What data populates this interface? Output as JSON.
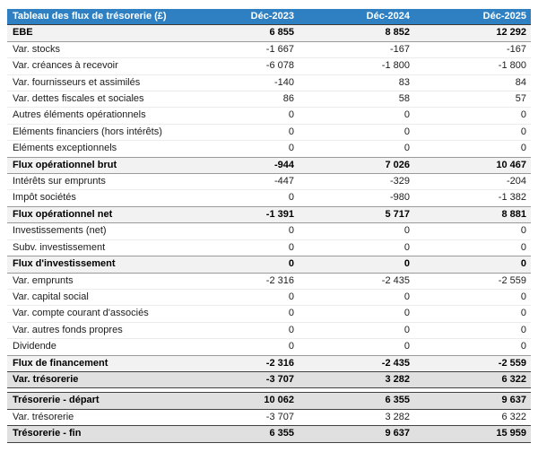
{
  "table": {
    "title": "Tableau des flux de trésorerie (£)",
    "columns": [
      "Déc-2023",
      "Déc-2024",
      "Déc-2025"
    ],
    "rows": [
      {
        "label": "EBE",
        "values": [
          "6 855",
          "8 852",
          "12 292"
        ],
        "style": "subtotal"
      },
      {
        "label": "Var. stocks",
        "values": [
          "-1 667",
          "-167",
          "-167"
        ],
        "style": "normal"
      },
      {
        "label": "Var. créances à recevoir",
        "values": [
          "-6 078",
          "-1 800",
          "-1 800"
        ],
        "style": "normal"
      },
      {
        "label": "Var. fournisseurs et assimilés",
        "values": [
          "-140",
          "83",
          "84"
        ],
        "style": "normal"
      },
      {
        "label": "Var. dettes fiscales et sociales",
        "values": [
          "86",
          "58",
          "57"
        ],
        "style": "normal"
      },
      {
        "label": "Autres éléments opérationnels",
        "values": [
          "0",
          "0",
          "0"
        ],
        "style": "normal"
      },
      {
        "label": "Eléments financiers (hors intérêts)",
        "values": [
          "0",
          "0",
          "0"
        ],
        "style": "normal"
      },
      {
        "label": "Eléments exceptionnels",
        "values": [
          "0",
          "0",
          "0"
        ],
        "style": "normal"
      },
      {
        "label": "Flux opérationnel brut",
        "values": [
          "-944",
          "7 026",
          "10 467"
        ],
        "style": "subtotal"
      },
      {
        "label": "Intérêts sur emprunts",
        "values": [
          "-447",
          "-329",
          "-204"
        ],
        "style": "normal"
      },
      {
        "label": "Impôt sociétés",
        "values": [
          "0",
          "-980",
          "-1 382"
        ],
        "style": "normal"
      },
      {
        "label": "Flux opérationnel net",
        "values": [
          "-1 391",
          "5 717",
          "8 881"
        ],
        "style": "subtotal"
      },
      {
        "label": "Investissements (net)",
        "values": [
          "0",
          "0",
          "0"
        ],
        "style": "normal"
      },
      {
        "label": "Subv. investissement",
        "values": [
          "0",
          "0",
          "0"
        ],
        "style": "normal"
      },
      {
        "label": "Flux d'investissement",
        "values": [
          "0",
          "0",
          "0"
        ],
        "style": "subtotal"
      },
      {
        "label": "Var. emprunts",
        "values": [
          "-2 316",
          "-2 435",
          "-2 559"
        ],
        "style": "normal"
      },
      {
        "label": "Var. capital social",
        "values": [
          "0",
          "0",
          "0"
        ],
        "style": "normal"
      },
      {
        "label": "Var. compte courant d'associés",
        "values": [
          "0",
          "0",
          "0"
        ],
        "style": "normal"
      },
      {
        "label": "Var. autres fonds propres",
        "values": [
          "0",
          "0",
          "0"
        ],
        "style": "normal"
      },
      {
        "label": "Dividende",
        "values": [
          "0",
          "0",
          "0"
        ],
        "style": "normal"
      },
      {
        "label": "Flux de financement",
        "values": [
          "-2 316",
          "-2 435",
          "-2 559"
        ],
        "style": "subtotal"
      },
      {
        "label": "Var. trésorerie",
        "values": [
          "-3 707",
          "3 282",
          "6 322"
        ],
        "style": "total"
      },
      {
        "style": "spacer"
      },
      {
        "label": "Trésorerie - départ",
        "values": [
          "10 062",
          "6 355",
          "9 637"
        ],
        "style": "total"
      },
      {
        "label": "Var. trésorerie",
        "values": [
          "-3 707",
          "3 282",
          "6 322"
        ],
        "style": "normal"
      },
      {
        "label": "Trésorerie - fin",
        "values": [
          "6 355",
          "9 637",
          "15 959"
        ],
        "style": "total"
      }
    ]
  },
  "colors": {
    "header_bg": "#2e80c3",
    "header_text": "#ffffff",
    "subtotal_bg": "#f2f2f2",
    "total_bg": "#e0e0e0"
  }
}
